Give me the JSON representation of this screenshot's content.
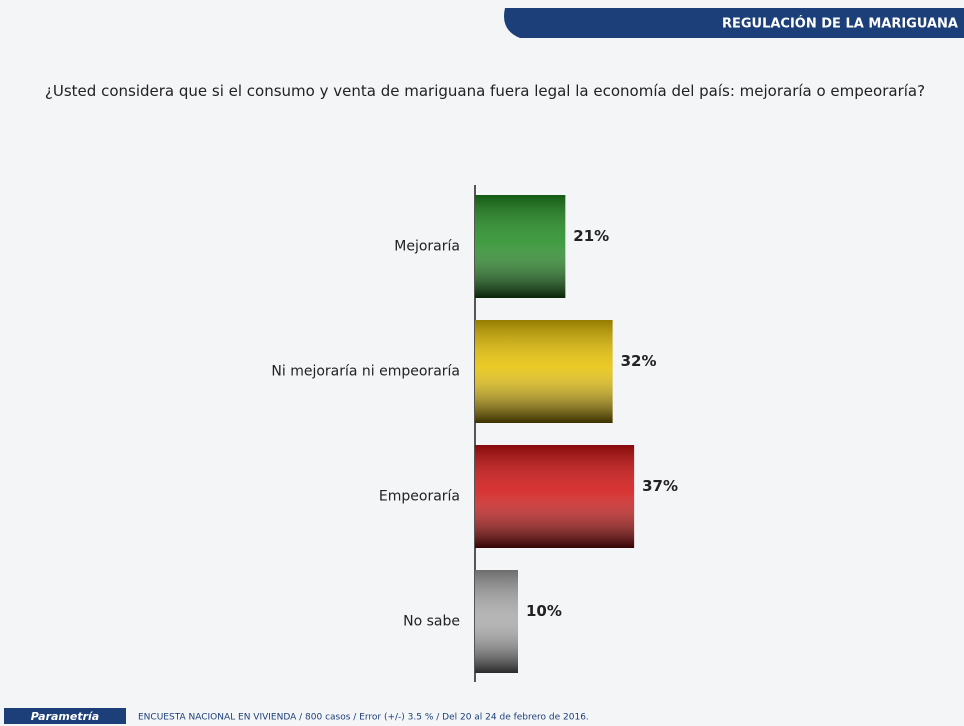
{
  "header": {
    "title": "REGULACIÓN DE LA MARIGUANA"
  },
  "chart_data": {
    "type": "barh",
    "title": "¿Usted considera que si el consumo y venta de mariguana fuera legal la economía del país: mejoraría o empeoraría?",
    "categories": [
      "Mejoraría",
      "Ni mejoraría ni empeoraría",
      "Empeoraría",
      "No sabe"
    ],
    "values": [
      21,
      32,
      37,
      10
    ],
    "value_labels": [
      "21%",
      "32%",
      "37%",
      "10%"
    ],
    "colors": [
      "#1f8a1f",
      "#e6c000",
      "#d01010",
      "#a8a8a8"
    ]
  },
  "footer": {
    "logo": "Parametría",
    "note": "ENCUESTA NACIONAL EN VIVIENDA / 800 casos / Error (+/-) 3.5 % / Del 20 al 24 de febrero de 2016."
  }
}
